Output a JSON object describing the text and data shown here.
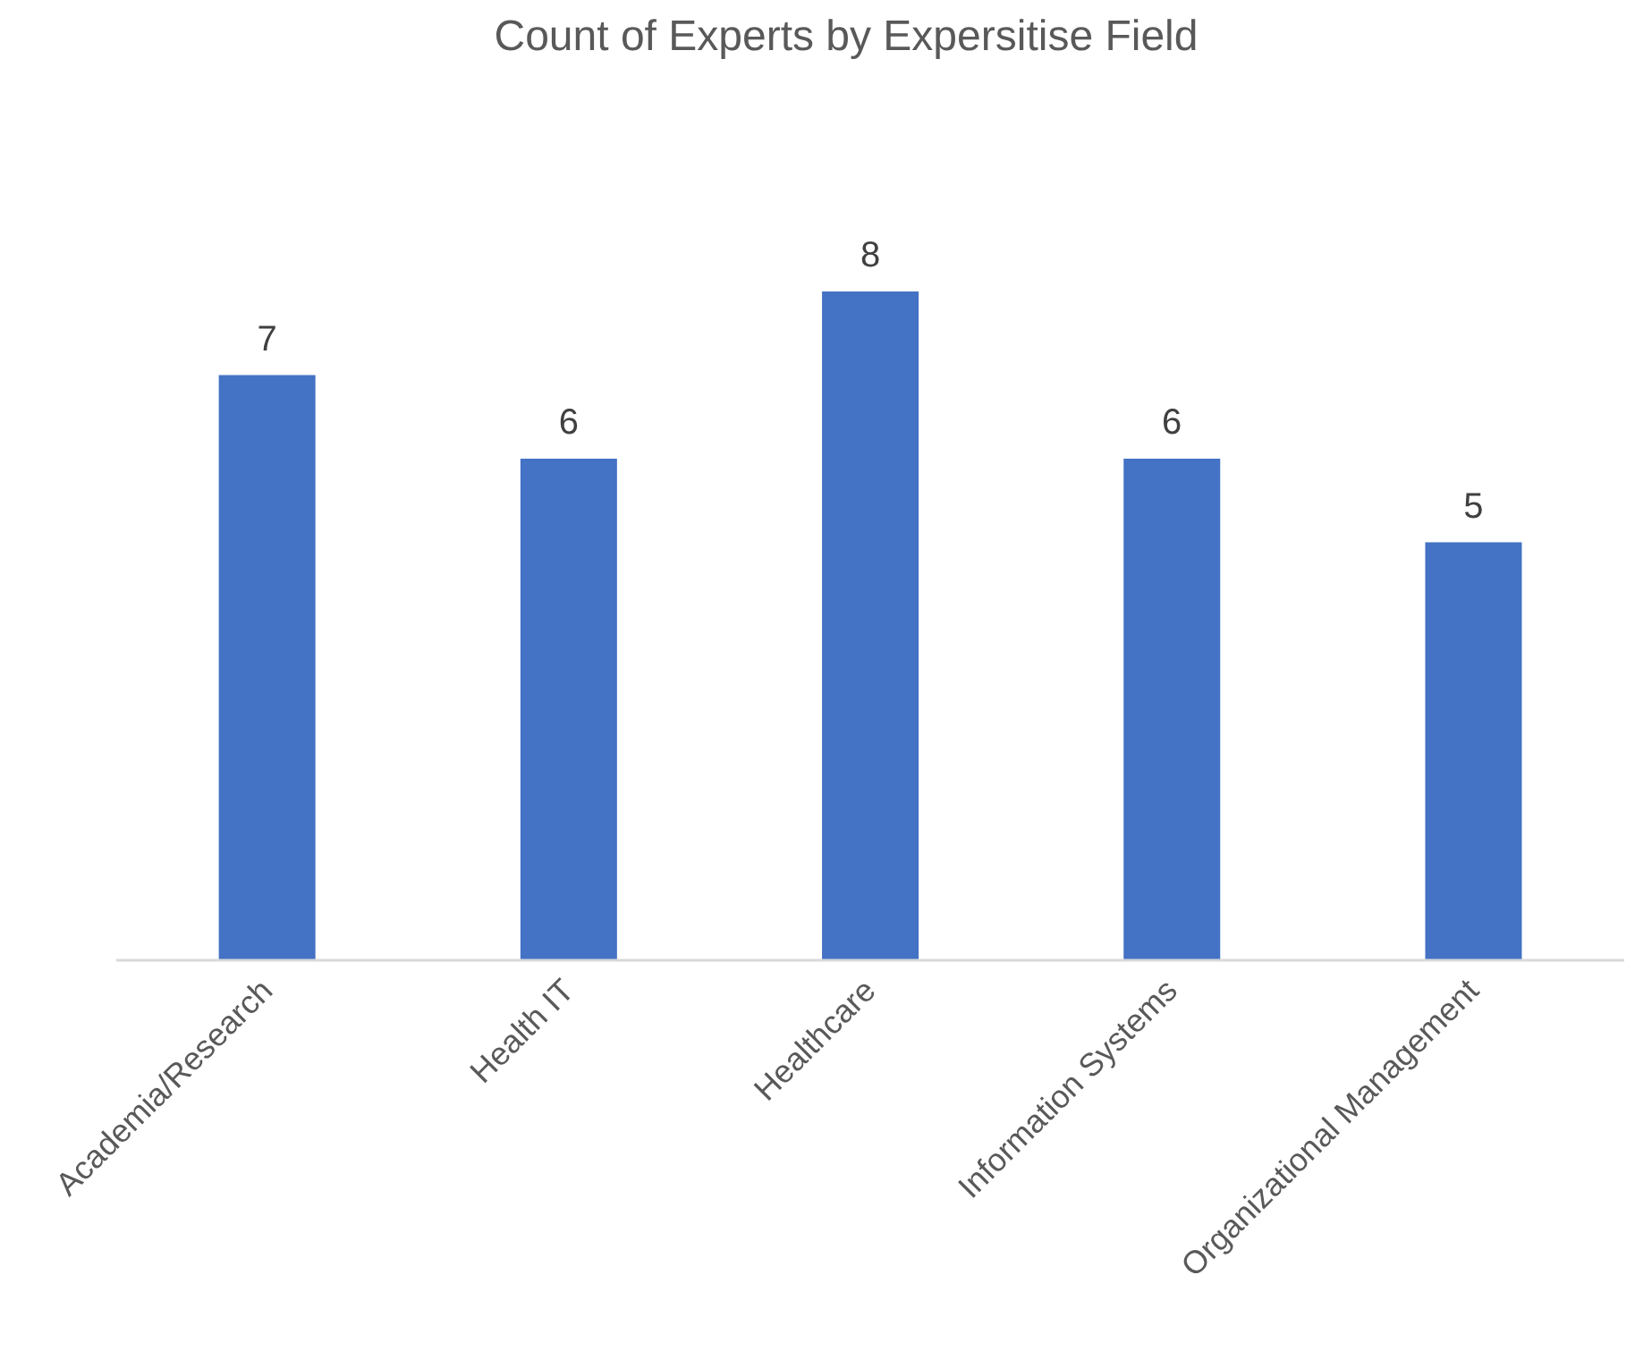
{
  "chart_data": {
    "type": "bar",
    "title": "Count of Experts by Expersitise Field",
    "categories": [
      "Academia/Research",
      "Health IT",
      "Healthcare",
      "Information Systems",
      "Organizational Management"
    ],
    "values": [
      7,
      6,
      8,
      6,
      5
    ],
    "color": "#4472c4",
    "data_labels": true,
    "tick_labels": "x",
    "grid": false,
    "legend": false
  }
}
